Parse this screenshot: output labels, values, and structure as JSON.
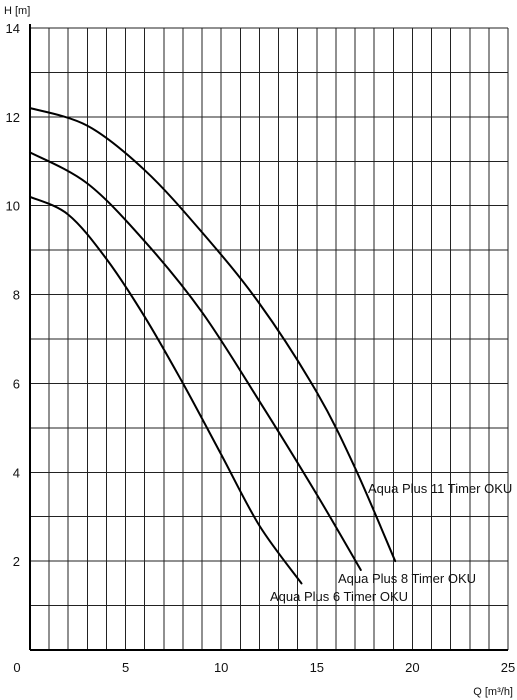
{
  "chart_data": {
    "type": "line",
    "ylabel": "H [m]",
    "xlabel": "Q [m³/h]",
    "xlim": [
      0,
      25
    ],
    "ylim": [
      0,
      14
    ],
    "x_ticks": [
      "0",
      "5",
      "10",
      "15",
      "20",
      "25"
    ],
    "y_ticks": [
      "2",
      "4",
      "6",
      "8",
      "10",
      "12",
      "14"
    ],
    "grid": true,
    "series": [
      {
        "name": "Aqua Plus 6 Timer OKU",
        "x": [
          0,
          2,
          4,
          6,
          8,
          10,
          12,
          14.2
        ],
        "y": [
          10.2,
          9.8,
          8.8,
          7.5,
          6.0,
          4.4,
          2.8,
          1.5
        ]
      },
      {
        "name": "Aqua Plus 8 Timer OKU",
        "x": [
          0,
          3,
          6,
          9,
          12,
          15,
          17.3
        ],
        "y": [
          11.2,
          10.5,
          9.2,
          7.6,
          5.6,
          3.5,
          1.8
        ]
      },
      {
        "name": "Aqua Plus 11 Timer OKU",
        "x": [
          0,
          3,
          6,
          9,
          12,
          15,
          17,
          19.1
        ],
        "y": [
          12.2,
          11.8,
          10.8,
          9.4,
          7.8,
          5.8,
          4.1,
          2.0
        ]
      }
    ]
  }
}
